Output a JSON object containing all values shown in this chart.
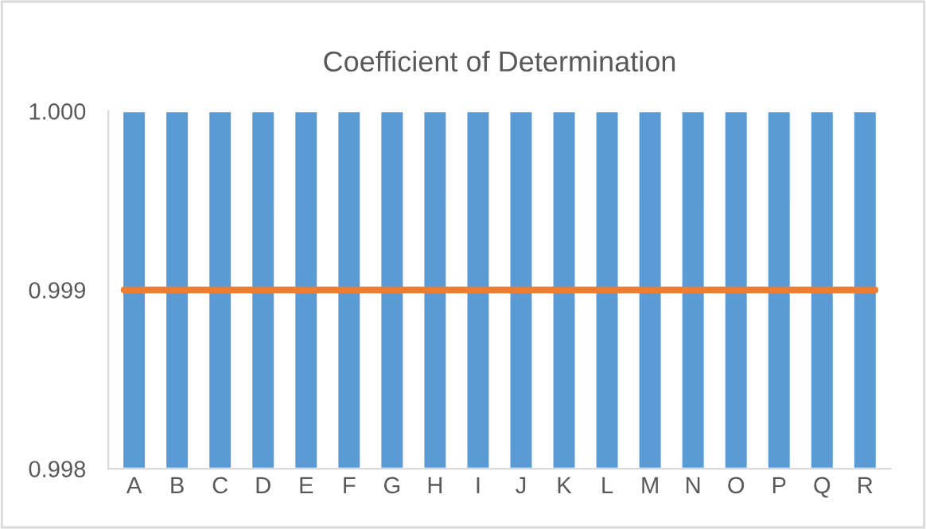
{
  "chart_data": {
    "type": "bar",
    "title": "Coefficient of Determination",
    "categories": [
      "A",
      "B",
      "C",
      "D",
      "E",
      "F",
      "G",
      "H",
      "I",
      "J",
      "K",
      "L",
      "M",
      "N",
      "O",
      "P",
      "Q",
      "R"
    ],
    "series": [
      {
        "color": "#5b9bd5",
        "values": [
          1.0,
          1.0,
          1.0,
          1.0,
          1.0,
          1.0,
          1.0,
          1.0,
          1.0,
          1.0,
          1.0,
          1.0,
          1.0,
          1.0,
          1.0,
          1.0,
          1.0,
          1.0
        ]
      }
    ],
    "ylim": [
      0.998,
      1.0
    ],
    "yticks": [
      {
        "value": 0.998,
        "label": "0.998"
      },
      {
        "value": 0.999,
        "label": "0.999"
      },
      {
        "value": 1.0,
        "label": "1.000"
      }
    ],
    "ref_lines": [
      {
        "axis": "y",
        "value": 0.999,
        "color": "#ed7d31"
      }
    ],
    "grid": false,
    "legend": false
  }
}
